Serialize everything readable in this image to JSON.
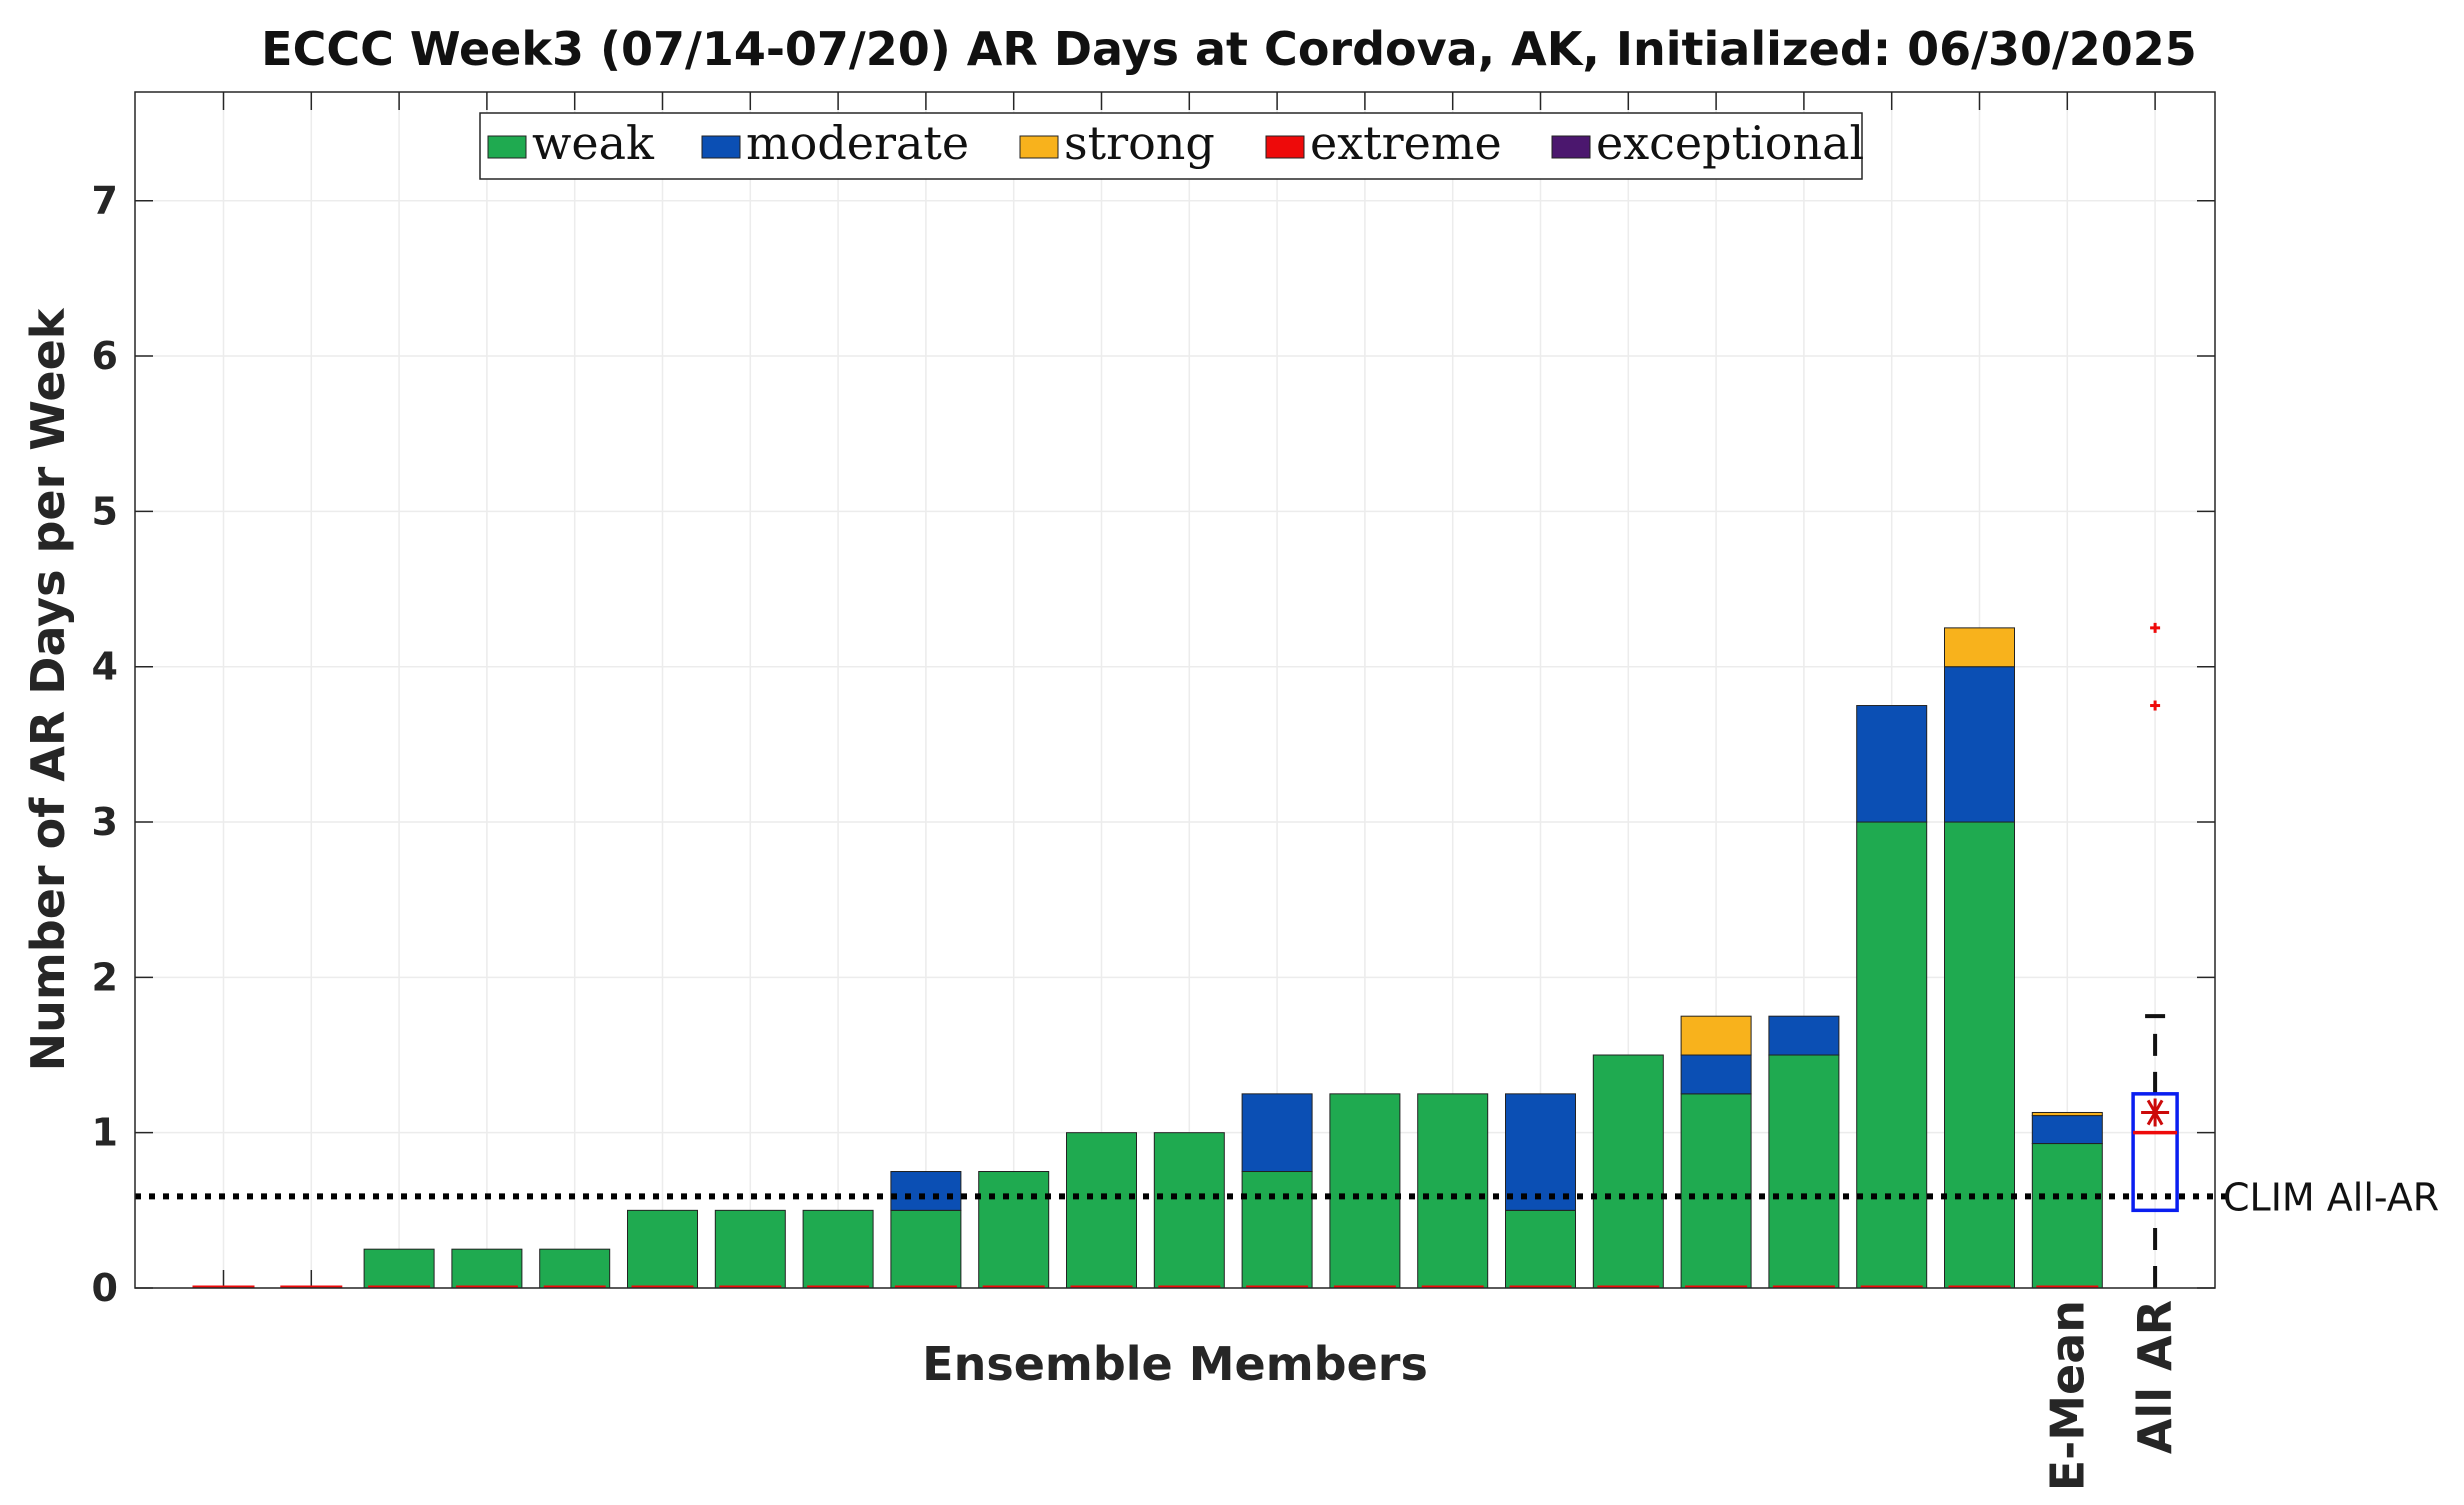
{
  "chart_data": {
    "type": "bar",
    "stacked": true,
    "title": "ECCC Week3 (07/14-07/20) AR Days at Cordova, AK, Initialized: 06/30/2025",
    "xlabel": "Ensemble Members",
    "ylabel": "Number of AR Days per Week",
    "ylim": [
      0,
      7.7
    ],
    "yticks": [
      0,
      1,
      2,
      3,
      4,
      5,
      6,
      7
    ],
    "grid": true,
    "legend_position": "top",
    "colors": {
      "weak": "#1faa50",
      "moderate": "#0b4fb4",
      "strong": "#f8b21c",
      "extreme": "#ee0a0a",
      "exceptional": "#4b176e"
    },
    "series": [
      {
        "name": "weak",
        "values": [
          0,
          0,
          0.25,
          0.25,
          0.25,
          0.5,
          0.5,
          0.5,
          0.5,
          0.75,
          1,
          1,
          0.75,
          1.25,
          1.25,
          0.5,
          1.5,
          1.25,
          1.5,
          3,
          3,
          0.93
        ]
      },
      {
        "name": "moderate",
        "values": [
          0,
          0,
          0,
          0,
          0,
          0,
          0,
          0,
          0.25,
          0,
          0,
          0,
          0.5,
          0,
          0,
          0.75,
          0,
          0.25,
          0.25,
          0.75,
          1,
          0.18
        ]
      },
      {
        "name": "strong",
        "values": [
          0,
          0,
          0,
          0,
          0,
          0,
          0,
          0,
          0,
          0,
          0,
          0,
          0,
          0,
          0,
          0,
          0,
          0.25,
          0,
          0,
          0.25,
          0.02
        ]
      },
      {
        "name": "extreme",
        "values": [
          0,
          0,
          0,
          0,
          0,
          0,
          0,
          0,
          0,
          0,
          0,
          0,
          0,
          0,
          0,
          0,
          0,
          0,
          0,
          0,
          0,
          0
        ]
      },
      {
        "name": "exceptional",
        "values": [
          0,
          0,
          0,
          0,
          0,
          0,
          0,
          0,
          0,
          0,
          0,
          0,
          0,
          0,
          0,
          0,
          0,
          0,
          0,
          0,
          0,
          0
        ]
      }
    ],
    "category_labels": [
      "",
      "",
      "",
      "",
      "",
      "",
      "",
      "",
      "",
      "",
      "",
      "",
      "",
      "",
      "",
      "",
      "",
      "",
      "",
      "",
      "",
      "E-Mean",
      "All AR"
    ],
    "all_ar_boxplot": {
      "q1": 0.5,
      "median": 1.0,
      "q3": 1.25,
      "mean": 1.13,
      "whisker_low": 0,
      "whisker_high": 1.75,
      "outliers": [
        3.75,
        4.25
      ]
    },
    "reference_line": {
      "label": "CLIM All-AR",
      "value": 0.59
    }
  }
}
